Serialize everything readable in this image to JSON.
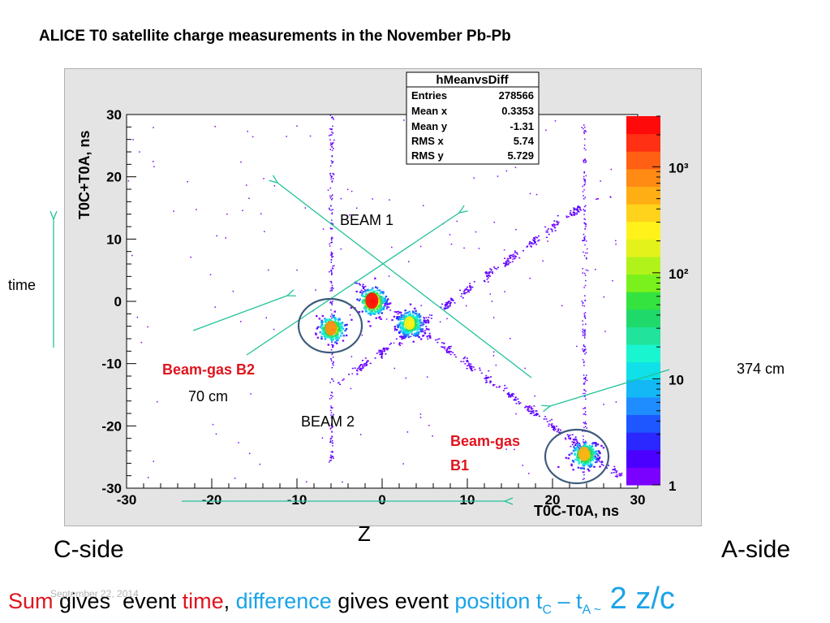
{
  "slide": {
    "title": "ALICE  T0 satellite charge measurements in the November Pb-Pb",
    "date": "September 22, 2014",
    "c_side": "C-side",
    "a_side": "A-side",
    "z_label": "Z",
    "time_label": "time"
  },
  "bottom": {
    "sum": "Sum",
    "gives1": " gives  event ",
    "time": "time",
    "comma": ", ",
    "difference": "difference",
    "gives2": " gives event ",
    "position": "position",
    "t": " t",
    "sub_c": "C",
    "minus": " – t",
    "sub_a": "A ~",
    "formula": " 2 z/c"
  },
  "annotations": {
    "beam1": "BEAM 1",
    "beam2": "BEAM 2",
    "beamgas_b2": "Beam-gas B2",
    "dist_b2": "70 cm",
    "beamgas_b1_line1": "Beam-gas",
    "beamgas_b1_line2": "B1",
    "dist_b1": "374 cm"
  },
  "stats_box": {
    "name": "hMeanvsDiff",
    "rows": [
      {
        "label": "Entries",
        "value": "278566"
      },
      {
        "label": "Mean x",
        "value": "0.3353"
      },
      {
        "label": "Mean y",
        "value": "-1.31"
      },
      {
        "label": "RMS x",
        "value": "5.74"
      },
      {
        "label": "RMS y",
        "value": "5.729"
      }
    ]
  },
  "colors": {
    "arrow": "#20c29a",
    "red_text": "#e0141e",
    "blue_text": "#1aa3e8",
    "circle": "#3d5a7a",
    "palette": [
      "#7a00ff",
      "#4b00ff",
      "#2a28ff",
      "#1e57ff",
      "#1f8cff",
      "#13b8f5",
      "#10e0e8",
      "#19f5cf",
      "#21e39c",
      "#1fd96b",
      "#35e340",
      "#7af01c",
      "#b2f21b",
      "#e4f21b",
      "#fff21b",
      "#ffd21b",
      "#ffae14",
      "#ff8a14",
      "#ff6014",
      "#ff3014",
      "#ff0a0a"
    ]
  },
  "chart_data": {
    "type": "heatmap",
    "title": "",
    "xlabel": "T0C-T0A, ns",
    "ylabel": "T0C+T0A, ns",
    "xlim": [
      -30,
      30
    ],
    "ylim": [
      -30,
      30
    ],
    "x_ticks": [
      -30,
      -20,
      -10,
      0,
      10,
      20,
      30
    ],
    "y_ticks": [
      -30,
      -20,
      -10,
      0,
      10,
      20,
      30
    ],
    "colorbar": {
      "scale": "log",
      "range": [
        1,
        3000
      ],
      "tick_labels": [
        "1",
        "10",
        "10²",
        "10³"
      ]
    },
    "clusters": [
      {
        "x": -1.2,
        "y": 0.1,
        "intensity": 3000
      },
      {
        "x": -6.0,
        "y": -4.3,
        "intensity": 800
      },
      {
        "x": 3.2,
        "y": -3.5,
        "intensity": 300
      },
      {
        "x": 23.7,
        "y": -24.5,
        "intensity": 600
      }
    ]
  }
}
